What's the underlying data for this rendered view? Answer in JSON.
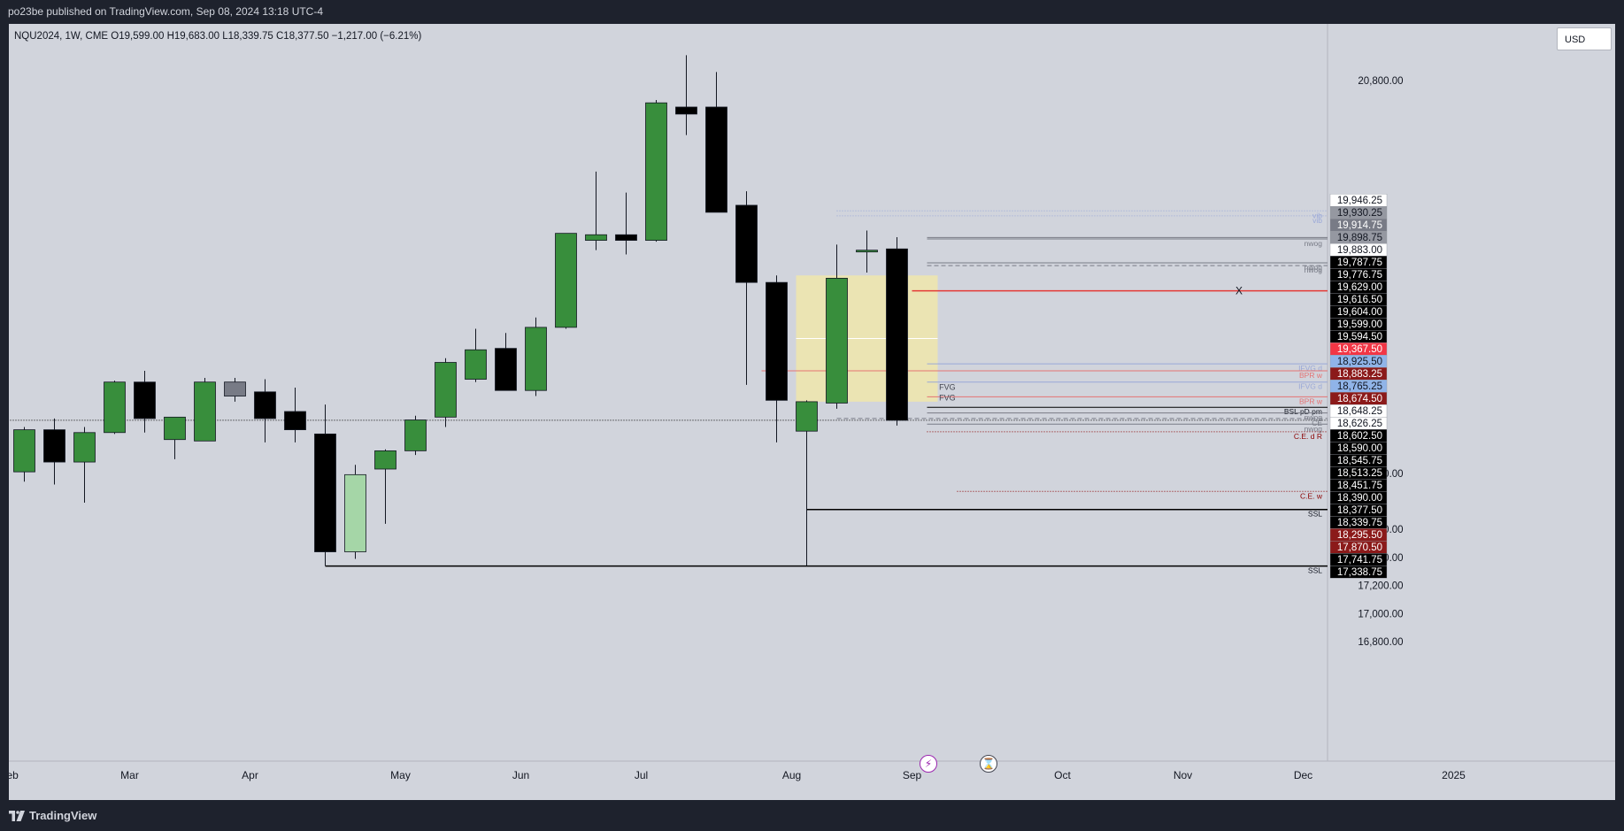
{
  "header": {
    "published_text": "po23be published on TradingView.com, Sep 08, 2024 13:18 UTC-4"
  },
  "legend": {
    "text": "NQU2024, 1W, CME  O19,599.00  H19,683.00  L18,339.75  C18,377.50  −1,217.00 (−6.21%)"
  },
  "currency_button": {
    "label": "USD"
  },
  "footer": {
    "brand": "TradingView"
  },
  "icons": {
    "event_left": "lightning-icon",
    "event_right": "hourglass-icon",
    "logo": "tradingview-logo-icon"
  },
  "colors": {
    "background": "#d1d4dc",
    "bull": "#388e3c",
    "bear": "#000000",
    "highlight_box": "#f3eaa6",
    "level_red": "#e53935"
  },
  "chart_data": {
    "type": "candlestick",
    "symbol": "NQU2024",
    "interval": "1W",
    "exchange": "CME",
    "ohlc_last": {
      "open": 19599.0,
      "high": 19683.0,
      "low": 18339.75,
      "close": 18377.5,
      "change": -1217.0,
      "change_pct": -6.21
    },
    "y_range": [
      16700,
      21150
    ],
    "y_ticks": [
      {
        "value": 20800,
        "label": "20,800.00"
      },
      {
        "value": 18000,
        "label": "18,000.00"
      },
      {
        "value": 17600,
        "label": "17,600.00"
      },
      {
        "value": 17400,
        "label": "17,400.00"
      },
      {
        "value": 17200,
        "label": "17,200.00"
      },
      {
        "value": 17000,
        "label": "17,000.00"
      },
      {
        "value": 16800,
        "label": "16,800.00"
      }
    ],
    "x_ticks": [
      {
        "label": "Feb",
        "week": -0.5
      },
      {
        "label": "Mar",
        "week": 3.5
      },
      {
        "label": "Apr",
        "week": 7.5
      },
      {
        "label": "May",
        "week": 12.5
      },
      {
        "label": "Jun",
        "week": 16.5
      },
      {
        "label": "Jul",
        "week": 20.5
      },
      {
        "label": "Aug",
        "week": 25.5
      },
      {
        "label": "Sep",
        "week": 29.5
      },
      {
        "label": "Oct",
        "week": 34.5
      },
      {
        "label": "Nov",
        "week": 38.5
      },
      {
        "label": "Dec",
        "week": 42.5
      },
      {
        "label": "2025",
        "week": 47.5
      }
    ],
    "candles": [
      {
        "o": 18010,
        "h": 18330,
        "l": 17940,
        "c": 18310
      },
      {
        "o": 18310,
        "h": 18390,
        "l": 17920,
        "c": 18080
      },
      {
        "o": 18080,
        "h": 18330,
        "l": 17790,
        "c": 18290
      },
      {
        "o": 18290,
        "h": 18660,
        "l": 18280,
        "c": 18650
      },
      {
        "o": 18650,
        "h": 18730,
        "l": 18290,
        "c": 18390
      },
      {
        "o": 18240,
        "h": 18390,
        "l": 18100,
        "c": 18400
      },
      {
        "o": 18230,
        "h": 18680,
        "l": 18230,
        "c": 18650
      },
      {
        "o": 18550,
        "h": 18680,
        "l": 18510,
        "c": 18650,
        "muted": true
      },
      {
        "o": 18580,
        "h": 18670,
        "l": 18220,
        "c": 18390
      },
      {
        "o": 18440,
        "h": 18610,
        "l": 18220,
        "c": 18310
      },
      {
        "o": 18280,
        "h": 18490,
        "l": 17340,
        "c": 17440
      },
      {
        "o": 17440,
        "h": 18060,
        "l": 17390,
        "c": 17990,
        "light": true
      },
      {
        "o": 18030,
        "h": 18170,
        "l": 17640,
        "c": 18160
      },
      {
        "o": 18160,
        "h": 18410,
        "l": 18130,
        "c": 18380
      },
      {
        "o": 18400,
        "h": 18820,
        "l": 18330,
        "c": 18790
      },
      {
        "o": 18670,
        "h": 19030,
        "l": 18650,
        "c": 18880
      },
      {
        "o": 18890,
        "h": 19000,
        "l": 18590,
        "c": 18590
      },
      {
        "o": 18590,
        "h": 19110,
        "l": 18550,
        "c": 19040
      },
      {
        "o": 19040,
        "h": 19710,
        "l": 19030,
        "c": 19710
      },
      {
        "o": 19660,
        "h": 20150,
        "l": 19590,
        "c": 19700
      },
      {
        "o": 19700,
        "h": 20000,
        "l": 19560,
        "c": 19660
      },
      {
        "o": 19660,
        "h": 20660,
        "l": 19650,
        "c": 20640
      },
      {
        "o": 20610,
        "h": 20980,
        "l": 20410,
        "c": 20560
      },
      {
        "o": 20610,
        "h": 20860,
        "l": 19860,
        "c": 19860
      },
      {
        "o": 19910,
        "h": 20010,
        "l": 18630,
        "c": 19360
      },
      {
        "o": 19360,
        "h": 19410,
        "l": 18220,
        "c": 18520
      },
      {
        "o": 18300,
        "h": 18520,
        "l": 17340,
        "c": 18510
      },
      {
        "o": 18500,
        "h": 19630,
        "l": 18460,
        "c": 19390
      },
      {
        "o": 19590,
        "h": 19730,
        "l": 19430,
        "c": 19590
      },
      {
        "o": 19599,
        "h": 19683,
        "l": 18339.75,
        "c": 18377.5
      }
    ],
    "highlight_box": {
      "start_week": 26,
      "end_week": 30,
      "top": 19410,
      "bottom": 18510
    },
    "horizontal_lines": [
      {
        "value": 19300,
        "start_week": 29.5,
        "color": "#e53935",
        "label": "X"
      },
      {
        "value": 17741.75,
        "start_week": 26,
        "color": "#000000",
        "label": "SSL"
      },
      {
        "value": 17338.75,
        "start_week": 10,
        "color": "#000000",
        "label": "SSL"
      },
      {
        "value": 18377.5,
        "start_week": -1,
        "color": "#000000",
        "dotted": true,
        "label": ""
      },
      {
        "value": 19870,
        "start_week": 27,
        "color": "#9aa8d8",
        "dotted": true,
        "label": "vib"
      },
      {
        "value": 19835,
        "start_week": 27,
        "color": "#9aa8d8",
        "dotted": true,
        "label": "vib"
      },
      {
        "value": 19670,
        "start_week": 30,
        "color": "#787b86",
        "label": "nwog"
      },
      {
        "value": 19680,
        "start_week": 30,
        "color": "#787b86",
        "label": ""
      },
      {
        "value": 19500,
        "start_week": 30,
        "color": "#787b86",
        "label": "nwog"
      },
      {
        "value": 19480,
        "start_week": 30,
        "color": "#787b86",
        "dashed": true,
        "label": "nwog"
      },
      {
        "value": 18780,
        "start_week": 30,
        "color": "#9aa8d8",
        "label": "IFVG d"
      },
      {
        "value": 18730,
        "start_week": 24.5,
        "color": "#e57373",
        "label": "BPR w"
      },
      {
        "value": 18650,
        "start_week": 30,
        "color": "#9aa8d8",
        "label": "IFVG d"
      },
      {
        "value": 18545,
        "start_week": 30,
        "color": "#e57373",
        "label": "BPR w"
      },
      {
        "value": 18470,
        "start_week": 30,
        "color": "#000000",
        "label": "BSL pD pm"
      },
      {
        "value": 18430,
        "start_week": 30,
        "color": "#787b86",
        "label": "nwog"
      },
      {
        "value": 18390,
        "start_week": 27,
        "color": "#787b86",
        "dashed": true,
        "label": "CE"
      },
      {
        "value": 18350,
        "start_week": 30,
        "color": "#787b86",
        "label": "nwog"
      },
      {
        "value": 18295.5,
        "start_week": 30,
        "color": "#8b0000",
        "dotted": true,
        "label": "C.E. d R"
      },
      {
        "value": 17870.5,
        "start_week": 31,
        "color": "#8b0000",
        "dotted": true,
        "label": "C.E. w"
      }
    ],
    "annotations": [
      {
        "text": "FVG",
        "week": 30.4,
        "value": 18595
      },
      {
        "text": "FVG",
        "week": 30.4,
        "value": 18520
      }
    ],
    "price_tags": [
      {
        "label": "19,946.25",
        "value": 19946.25,
        "bg": "#ffffff",
        "fg": "#131722"
      },
      {
        "label": "19,930.25",
        "value": 19930.25,
        "bg": "#9598a1",
        "fg": "#131722"
      },
      {
        "label": "19,914.75",
        "value": 19914.75,
        "bg": "#787b86",
        "fg": "#ffffff"
      },
      {
        "label": "19,898.75",
        "value": 19898.75,
        "bg": "#9598a1",
        "fg": "#131722"
      },
      {
        "label": "19,883.00",
        "value": 19883.0,
        "bg": "#ffffff",
        "fg": "#131722"
      },
      {
        "label": "19,787.75",
        "value": 19787.75,
        "bg": "#000000",
        "fg": "#ffffff"
      },
      {
        "label": "19,776.75",
        "value": 19776.75,
        "bg": "#000000",
        "fg": "#ffffff"
      },
      {
        "label": "19,629.00",
        "value": 19629.0,
        "bg": "#000000",
        "fg": "#ffffff"
      },
      {
        "label": "19,616.50",
        "value": 19616.5,
        "bg": "#000000",
        "fg": "#ffffff"
      },
      {
        "label": "19,604.00",
        "value": 19604.0,
        "bg": "#000000",
        "fg": "#ffffff"
      },
      {
        "label": "19,599.00",
        "value": 19599.0,
        "bg": "#000000",
        "fg": "#ffffff"
      },
      {
        "label": "19,594.50",
        "value": 19594.5,
        "bg": "#000000",
        "fg": "#ffffff"
      },
      {
        "label": "19,367.50",
        "value": 19367.5,
        "bg": "#f23645",
        "fg": "#ffffff"
      },
      {
        "label": "18,925.50",
        "value": 18925.5,
        "bg": "#90b4e8",
        "fg": "#131722"
      },
      {
        "label": "18,883.25",
        "value": 18883.25,
        "bg": "#8b1a1a",
        "fg": "#ffffff"
      },
      {
        "label": "18,765.25",
        "value": 18765.25,
        "bg": "#90b4e8",
        "fg": "#131722"
      },
      {
        "label": "18,674.50",
        "value": 18674.5,
        "bg": "#8b1a1a",
        "fg": "#ffffff"
      },
      {
        "label": "18,648.25",
        "value": 18648.25,
        "bg": "#ffffff",
        "fg": "#131722"
      },
      {
        "label": "18,626.25",
        "value": 18626.25,
        "bg": "#ffffff",
        "fg": "#131722"
      },
      {
        "label": "18,602.50",
        "value": 18602.5,
        "bg": "#000000",
        "fg": "#ffffff"
      },
      {
        "label": "18,590.00",
        "value": 18590.0,
        "bg": "#000000",
        "fg": "#ffffff"
      },
      {
        "label": "18,545.75",
        "value": 18545.75,
        "bg": "#000000",
        "fg": "#ffffff"
      },
      {
        "label": "18,513.25",
        "value": 18513.25,
        "bg": "#000000",
        "fg": "#ffffff"
      },
      {
        "label": "18,451.75",
        "value": 18451.75,
        "bg": "#000000",
        "fg": "#ffffff"
      },
      {
        "label": "18,390.00",
        "value": 18390.0,
        "bg": "#000000",
        "fg": "#ffffff"
      },
      {
        "label": "18,377.50",
        "value": 18377.5,
        "bg": "#000000",
        "fg": "#ffffff"
      },
      {
        "label": "18,339.75",
        "value": 18339.75,
        "bg": "#000000",
        "fg": "#ffffff"
      },
      {
        "label": "18,295.50",
        "value": 18295.5,
        "bg": "#8b1a1a",
        "fg": "#ffffff"
      },
      {
        "label": "17,870.50",
        "value": 17870.5,
        "bg": "#8b1a1a",
        "fg": "#ffffff"
      },
      {
        "label": "17,741.75",
        "value": 17741.75,
        "bg": "#000000",
        "fg": "#ffffff"
      },
      {
        "label": "17,338.75",
        "value": 17338.75,
        "bg": "#000000",
        "fg": "#ffffff"
      }
    ]
  }
}
